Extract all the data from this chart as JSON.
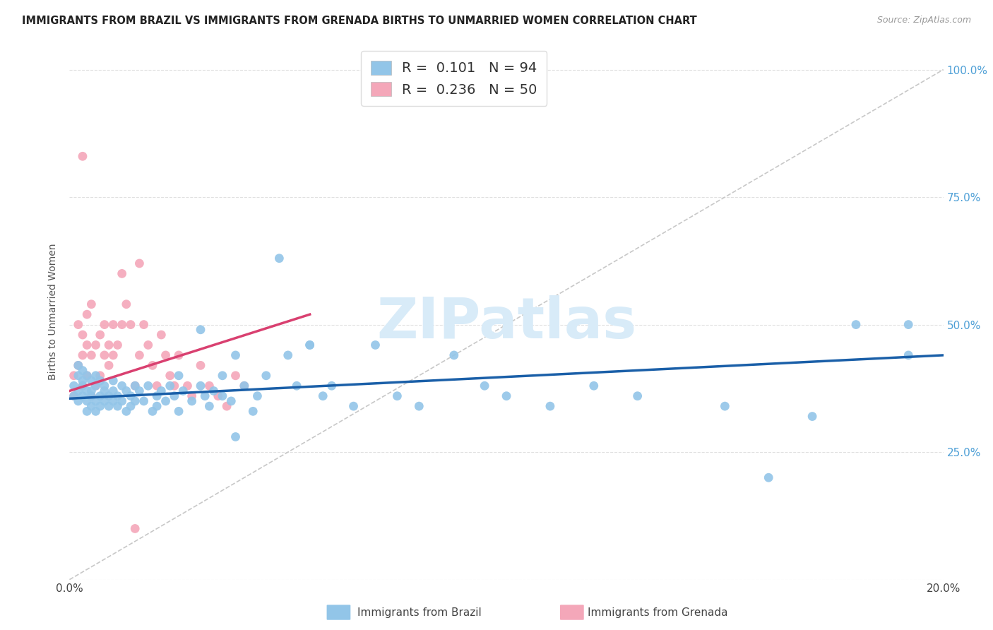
{
  "title": "IMMIGRANTS FROM BRAZIL VS IMMIGRANTS FROM GRENADA BIRTHS TO UNMARRIED WOMEN CORRELATION CHART",
  "source": "Source: ZipAtlas.com",
  "ylabel": "Births to Unmarried Women",
  "x_min": 0.0,
  "x_max": 0.2,
  "y_min": 0.0,
  "y_max": 1.05,
  "brazil_color": "#92C5E8",
  "grenada_color": "#F4A7B9",
  "brazil_R": 0.101,
  "brazil_N": 94,
  "grenada_R": 0.236,
  "grenada_N": 50,
  "brazil_line_color": "#1A5FA8",
  "grenada_line_color": "#D94070",
  "diagonal_color": "#C8C8C8",
  "watermark_text": "ZIPatlas",
  "watermark_color": "#D8EBF8",
  "brazil_x": [
    0.001,
    0.001,
    0.002,
    0.002,
    0.002,
    0.002,
    0.003,
    0.003,
    0.003,
    0.003,
    0.004,
    0.004,
    0.004,
    0.004,
    0.005,
    0.005,
    0.005,
    0.005,
    0.006,
    0.006,
    0.006,
    0.006,
    0.007,
    0.007,
    0.007,
    0.008,
    0.008,
    0.008,
    0.009,
    0.009,
    0.01,
    0.01,
    0.01,
    0.011,
    0.011,
    0.012,
    0.012,
    0.013,
    0.013,
    0.014,
    0.014,
    0.015,
    0.015,
    0.016,
    0.017,
    0.018,
    0.019,
    0.02,
    0.02,
    0.021,
    0.022,
    0.023,
    0.024,
    0.025,
    0.025,
    0.026,
    0.028,
    0.03,
    0.031,
    0.032,
    0.033,
    0.035,
    0.035,
    0.037,
    0.038,
    0.04,
    0.042,
    0.043,
    0.045,
    0.048,
    0.05,
    0.052,
    0.055,
    0.058,
    0.06,
    0.065,
    0.07,
    0.075,
    0.08,
    0.088,
    0.095,
    0.1,
    0.11,
    0.12,
    0.13,
    0.15,
    0.16,
    0.17,
    0.18,
    0.192,
    0.03,
    0.038,
    0.055,
    0.192
  ],
  "brazil_y": [
    0.36,
    0.38,
    0.37,
    0.4,
    0.35,
    0.42,
    0.36,
    0.39,
    0.38,
    0.41,
    0.35,
    0.37,
    0.4,
    0.33,
    0.36,
    0.39,
    0.34,
    0.37,
    0.35,
    0.38,
    0.33,
    0.4,
    0.36,
    0.39,
    0.34,
    0.37,
    0.35,
    0.38,
    0.36,
    0.34,
    0.37,
    0.35,
    0.39,
    0.36,
    0.34,
    0.38,
    0.35,
    0.37,
    0.33,
    0.36,
    0.34,
    0.38,
    0.35,
    0.37,
    0.35,
    0.38,
    0.33,
    0.36,
    0.34,
    0.37,
    0.35,
    0.38,
    0.36,
    0.4,
    0.33,
    0.37,
    0.35,
    0.38,
    0.36,
    0.34,
    0.37,
    0.4,
    0.36,
    0.35,
    0.28,
    0.38,
    0.33,
    0.36,
    0.4,
    0.63,
    0.44,
    0.38,
    0.46,
    0.36,
    0.38,
    0.34,
    0.46,
    0.36,
    0.34,
    0.44,
    0.38,
    0.36,
    0.34,
    0.38,
    0.36,
    0.34,
    0.2,
    0.32,
    0.5,
    0.44,
    0.49,
    0.44,
    0.46,
    0.5
  ],
  "grenada_x": [
    0.001,
    0.001,
    0.002,
    0.002,
    0.003,
    0.003,
    0.003,
    0.004,
    0.004,
    0.004,
    0.005,
    0.005,
    0.005,
    0.006,
    0.006,
    0.007,
    0.007,
    0.008,
    0.008,
    0.009,
    0.009,
    0.01,
    0.01,
    0.011,
    0.012,
    0.012,
    0.013,
    0.014,
    0.015,
    0.016,
    0.016,
    0.017,
    0.018,
    0.019,
    0.02,
    0.021,
    0.022,
    0.023,
    0.024,
    0.025,
    0.027,
    0.028,
    0.03,
    0.032,
    0.034,
    0.036,
    0.038,
    0.04,
    0.003,
    0.015
  ],
  "grenada_y": [
    0.36,
    0.4,
    0.42,
    0.5,
    0.38,
    0.44,
    0.48,
    0.4,
    0.46,
    0.52,
    0.36,
    0.44,
    0.54,
    0.38,
    0.46,
    0.4,
    0.48,
    0.44,
    0.5,
    0.42,
    0.46,
    0.44,
    0.5,
    0.46,
    0.5,
    0.6,
    0.54,
    0.5,
    0.38,
    0.44,
    0.62,
    0.5,
    0.46,
    0.42,
    0.38,
    0.48,
    0.44,
    0.4,
    0.38,
    0.44,
    0.38,
    0.36,
    0.42,
    0.38,
    0.36,
    0.34,
    0.4,
    0.38,
    0.83,
    0.1
  ],
  "legend_brazil_label": "R =  0.101   N = 94",
  "legend_grenada_label": "R =  0.236   N = 50",
  "bottom_legend_brazil": "Immigrants from Brazil",
  "bottom_legend_grenada": "Immigrants from Grenada"
}
